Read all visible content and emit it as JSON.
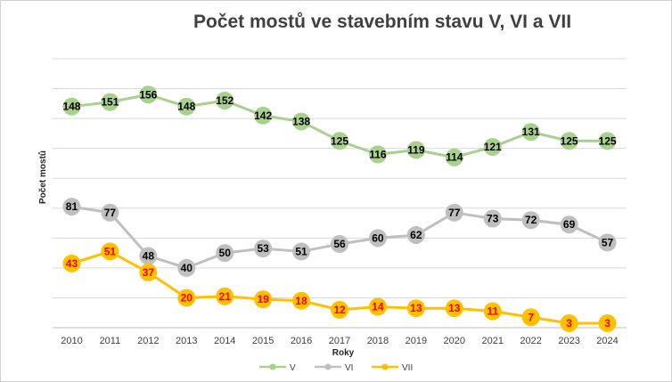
{
  "chart_data": {
    "type": "line",
    "title": "Počet mostů ve stavebním stavu V, VI a VII",
    "xlabel": "Roky",
    "ylabel": "Počet mostů",
    "categories": [
      "2010",
      "2011",
      "2012",
      "2013",
      "2014",
      "2015",
      "2016",
      "2017",
      "2018",
      "2019",
      "2020",
      "2021",
      "2022",
      "2023",
      "2024"
    ],
    "ylim": [
      0,
      180
    ],
    "grid": true,
    "legend_position": "bottom",
    "series": [
      {
        "name": "V",
        "color": "#a9d18e",
        "label_color": "#000000",
        "values": [
          148,
          151,
          156,
          148,
          152,
          142,
          138,
          125,
          116,
          119,
          114,
          121,
          131,
          125,
          125
        ]
      },
      {
        "name": "VI",
        "color": "#bfbfbf",
        "label_color": "#000000",
        "values": [
          81,
          77,
          48,
          40,
          50,
          53,
          51,
          56,
          60,
          62,
          77,
          73,
          72,
          69,
          57
        ]
      },
      {
        "name": "VII",
        "color": "#ffc000",
        "label_color": "#ff0000",
        "values": [
          43,
          51,
          37,
          20,
          21,
          19,
          18,
          12,
          14,
          13,
          13,
          11,
          7,
          3,
          3
        ]
      }
    ]
  }
}
